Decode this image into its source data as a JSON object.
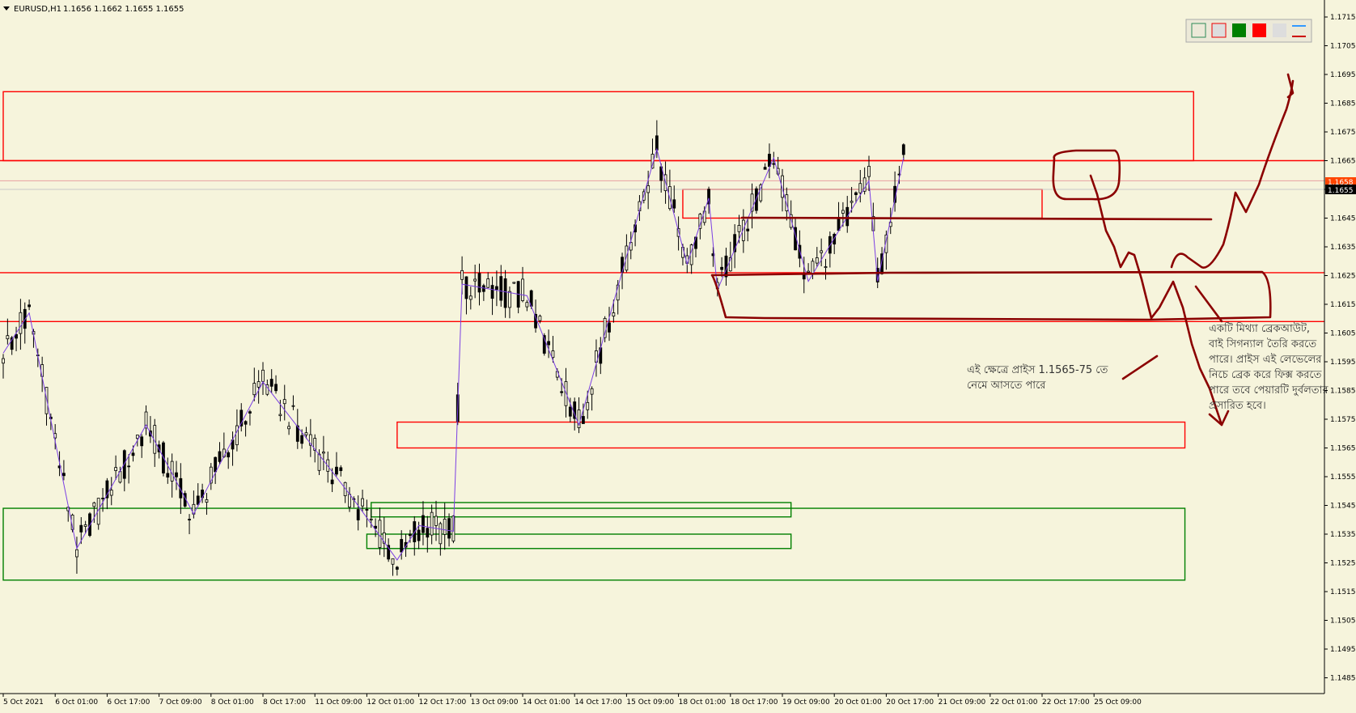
{
  "header": {
    "symbol": "EURUSD,H1",
    "ohlc": "1.1656 1.1662 1.1655 1.1655"
  },
  "toolbar": {
    "icons": [
      "outline-box-icon",
      "red-outline-box-icon",
      "green-fill-icon",
      "red-fill-icon",
      "blank-swatch-icon",
      "line-style-icon"
    ]
  },
  "price_labels": {
    "bid": "1.1655",
    "ask": "1.1658"
  },
  "annotations": {
    "note_left": [
      "এই ক্ষেত্রে প্রাইস 1.1565-75 তে",
      "নেমে আসতে পারে"
    ],
    "note_right": [
      "একটি মিথ্যা ব্রেকআউট,",
      "বাই সিগন্যাল তৈরি করতে",
      "পারে। প্রাইস এই লেভেলের",
      "নিচে ব্রেক করে ফিক্স করতে",
      "পারে তবে পেয়ারটি দুর্বলতার",
      "প্রসারিত হবে।"
    ]
  },
  "colors": {
    "background": "#f6f4dc",
    "resistance": "#ff0000",
    "support": "#008000",
    "drawing": "#8b0000",
    "zigzag": "#7b3fe4",
    "candle": "#000000",
    "ask_label": "#ff4500"
  },
  "chart_data": {
    "type": "candlestick",
    "title": "EURUSD,H1",
    "ylim": [
      1.148,
      1.1719
    ],
    "y_ticks": [
      "1.1715",
      "1.1705",
      "1.1695",
      "1.1685",
      "1.1675",
      "1.1665",
      "1.1655",
      "1.1645",
      "1.1635",
      "1.1625",
      "1.1615",
      "1.1605",
      "1.1595",
      "1.1585",
      "1.1575",
      "1.1565",
      "1.1555",
      "1.1545",
      "1.1535",
      "1.1525",
      "1.1515",
      "1.1505",
      "1.1495",
      "1.1485"
    ],
    "x_ticks": [
      "5 Oct 2021",
      "6 Oct 01:00",
      "6 Oct 17:00",
      "7 Oct 09:00",
      "8 Oct 01:00",
      "8 Oct 17:00",
      "11 Oct 09:00",
      "12 Oct 01:00",
      "12 Oct 17:00",
      "13 Oct 09:00",
      "14 Oct 01:00",
      "14 Oct 17:00",
      "15 Oct 09:00",
      "18 Oct 01:00",
      "18 Oct 17:00",
      "19 Oct 09:00",
      "20 Oct 01:00",
      "20 Oct 17:00",
      "21 Oct 09:00",
      "22 Oct 01:00",
      "22 Oct 17:00",
      "25 Oct 09:00"
    ],
    "n_bars": 255,
    "bars_per_tick": 12,
    "zigzag": [
      [
        0,
        1.1598
      ],
      [
        6,
        1.1612
      ],
      [
        17,
        1.153
      ],
      [
        33,
        1.1573
      ],
      [
        44,
        1.1542
      ],
      [
        60,
        1.1588
      ],
      [
        81,
        1.1547
      ],
      [
        91,
        1.1526
      ],
      [
        96,
        1.1538
      ],
      [
        104,
        1.1536
      ],
      [
        106,
        1.1622
      ],
      [
        121,
        1.1618
      ],
      [
        133,
        1.1573
      ],
      [
        151,
        1.1669
      ],
      [
        158,
        1.1629
      ],
      [
        163,
        1.1652
      ],
      [
        165,
        1.162
      ],
      [
        178,
        1.1666
      ],
      [
        186,
        1.1623
      ],
      [
        200,
        1.1658
      ],
      [
        202,
        1.1623
      ],
      [
        208,
        1.1666
      ]
    ],
    "levels": [
      {
        "type": "resistance",
        "price": 1.1665
      },
      {
        "type": "resistance",
        "price": 1.1626
      },
      {
        "type": "resistance",
        "price": 1.1609
      },
      {
        "type": "reference",
        "price": 1.1658
      }
    ],
    "zones": [
      {
        "type": "resistance",
        "from": 1.1665,
        "to": 1.1689
      },
      {
        "type": "resistance",
        "from": 1.1645,
        "to": 1.1655
      },
      {
        "type": "resistance",
        "from": 1.1565,
        "to": 1.1574
      },
      {
        "type": "support",
        "from": 1.1541,
        "to": 1.1546
      },
      {
        "type": "support",
        "from": 1.153,
        "to": 1.1535
      },
      {
        "type": "support",
        "from": 1.1519,
        "to": 1.1544
      }
    ],
    "last_price": 1.1655
  }
}
